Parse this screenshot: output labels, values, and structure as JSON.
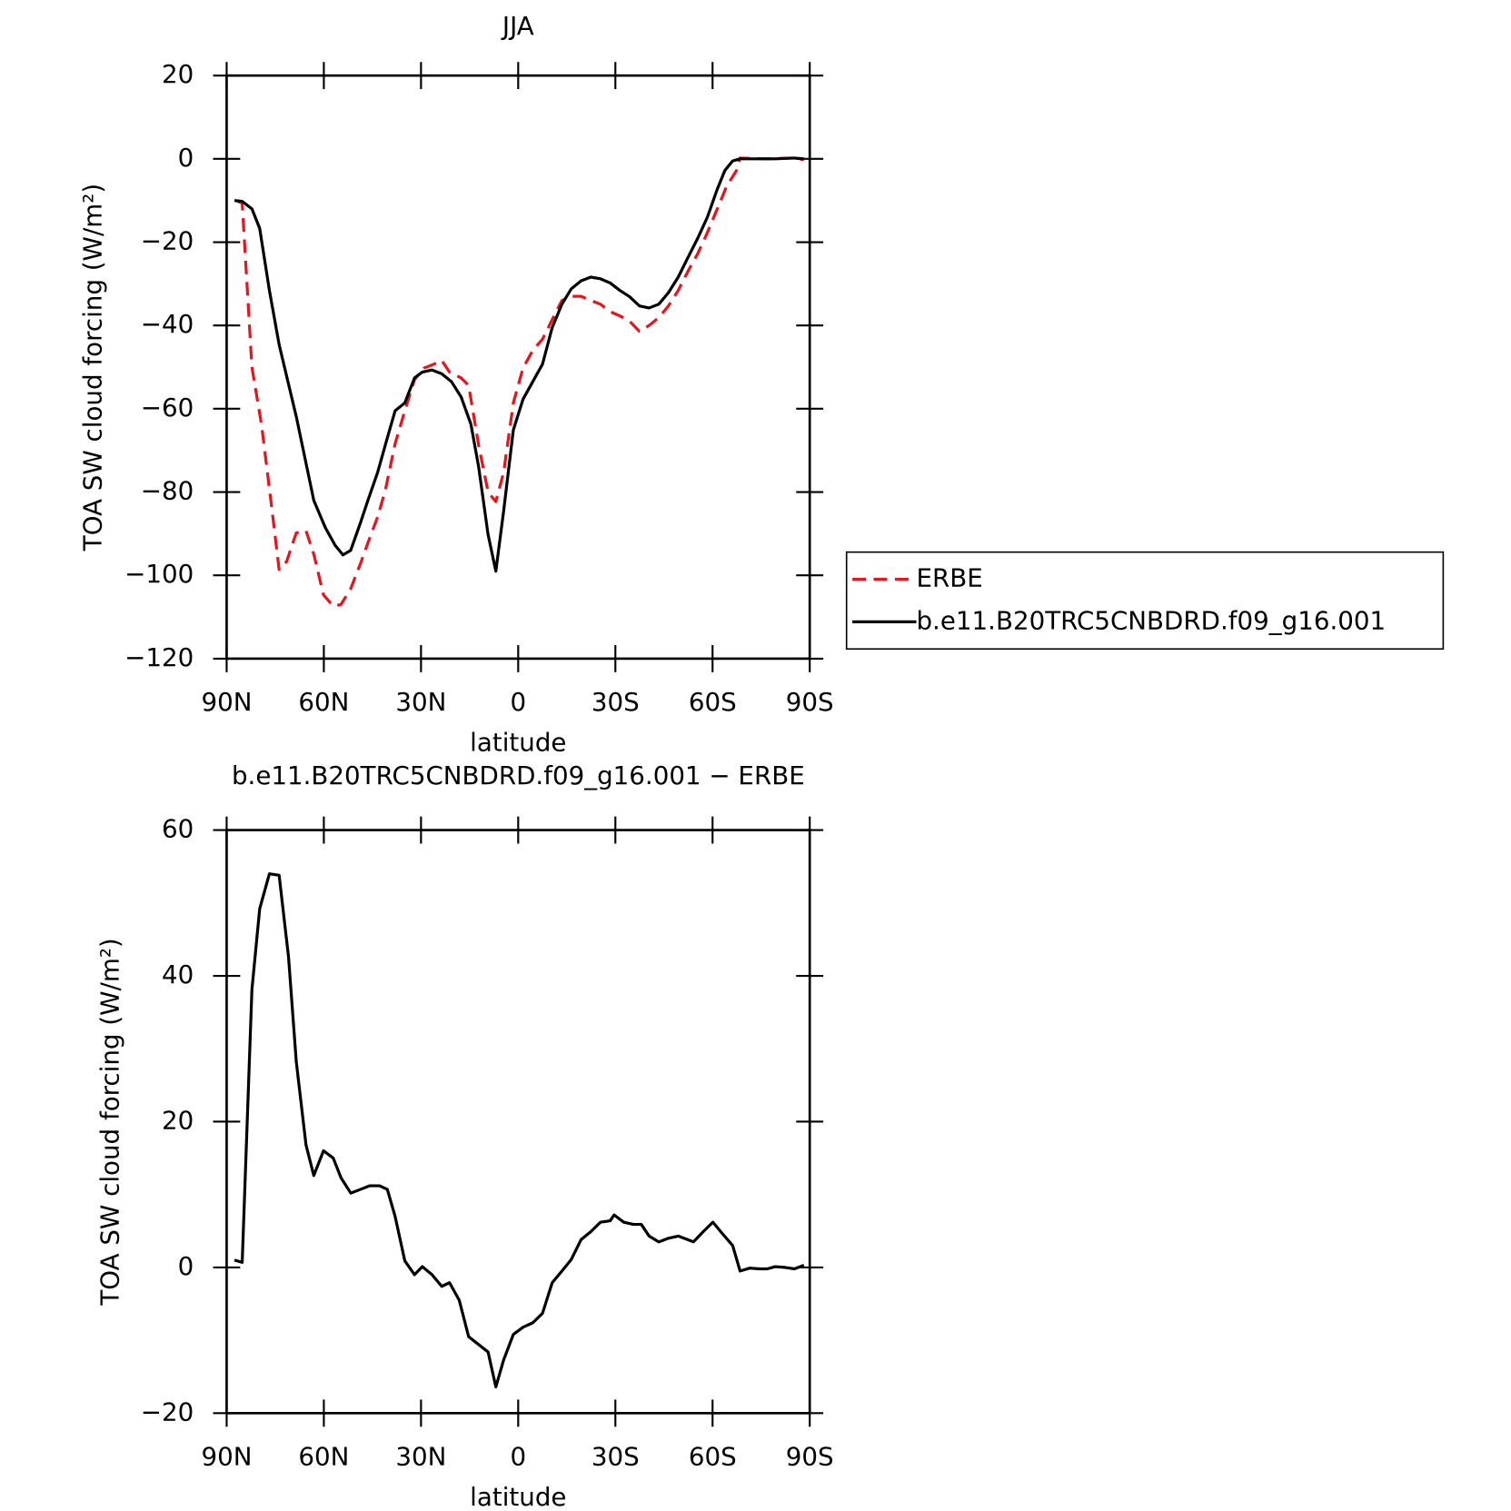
{
  "chart_data": [
    {
      "type": "line",
      "title": "JJA",
      "xlabel": "latitude",
      "ylabel": "TOA SW cloud forcing (W/m²)",
      "xlim": [
        90,
        -90
      ],
      "xticks": [
        {
          "value": 90,
          "label": "90N"
        },
        {
          "value": 60,
          "label": "60N"
        },
        {
          "value": 30,
          "label": "30N"
        },
        0,
        {
          "value": -30,
          "label": "30S"
        },
        {
          "value": -60,
          "label": "60S"
        },
        {
          "value": -90,
          "label": "90S"
        }
      ],
      "ylim": [
        -120,
        20
      ],
      "yticks": [
        {
          "value": -120,
          "label": "−120"
        },
        {
          "value": -100,
          "label": "−100"
        },
        {
          "value": -80,
          "label": "−80"
        },
        {
          "value": -60,
          "label": "−60"
        },
        {
          "value": -40,
          "label": "−40"
        },
        {
          "value": -20,
          "label": "−20"
        },
        0,
        20
      ],
      "legend": "right",
      "series": [
        {
          "name": "ERBE",
          "color": "#e8141c",
          "dashed": true,
          "x": [
            87,
            85.2,
            82.2,
            79.2,
            76.2,
            73.8,
            71.5,
            68.5,
            65.5,
            63.1,
            60.1,
            57.1,
            54.7,
            51.7,
            48.7,
            46.3,
            43.4,
            41,
            38,
            35,
            32,
            29,
            26,
            23.6,
            21.2,
            17.6,
            15.3,
            12.2,
            9.3,
            6.9,
            4.5,
            1.5,
            -1.5,
            -4.5,
            -7.5,
            -10.5,
            -13.5,
            -16.4,
            -19.4,
            -22.4,
            -25.4,
            -28.4,
            -31.4,
            -34.4,
            -37.4,
            -40.4,
            -43.4,
            -46.4,
            -49.4,
            -52.4,
            -55.4,
            -58.4,
            -61.4,
            -64.4,
            -67.4,
            -68.5,
            -76.3,
            -84.7,
            -88.2
          ],
          "values": [
            -10,
            -10.7,
            -50,
            -64,
            -83,
            -98.6,
            -96.7,
            -89.8,
            -89.3,
            -94.9,
            -104.7,
            -107.4,
            -107,
            -103.2,
            -97.2,
            -92,
            -86,
            -79.5,
            -68.4,
            -60.5,
            -53,
            -50.2,
            -49.3,
            -48.4,
            -51.2,
            -52.6,
            -54.4,
            -68.8,
            -80,
            -82.3,
            -75.3,
            -58.6,
            -50.2,
            -46,
            -43.3,
            -38.6,
            -34,
            -33,
            -33,
            -34,
            -34.9,
            -36.7,
            -37.7,
            -39,
            -41.4,
            -40,
            -38.1,
            -35.3,
            -31.6,
            -27,
            -22.8,
            -17.7,
            -12.1,
            -6.5,
            -2.8,
            0.2,
            0,
            0.2,
            -0.2
          ]
        },
        {
          "name": "b.e11.B20TRC5CNBDRD.f09_g16.001",
          "color": "#000000",
          "dashed": false,
          "x": [
            87.6,
            85.2,
            82.2,
            79.8,
            76.8,
            73.8,
            68.5,
            63.1,
            59.5,
            56.5,
            54.1,
            51.7,
            48.7,
            46.3,
            43.4,
            40.4,
            38,
            35,
            32,
            29.6,
            26.6,
            23.6,
            20.6,
            17.6,
            14.6,
            12.2,
            9.3,
            6.9,
            4.5,
            1.5,
            -1.5,
            -4.5,
            -7.5,
            -10.5,
            -13.5,
            -16.4,
            -19.4,
            -22.4,
            -25.4,
            -28.4,
            -31.4,
            -34.4,
            -37.4,
            -40.4,
            -43.4,
            -46.4,
            -49.4,
            -52.4,
            -55.4,
            -58.4,
            -61.4,
            -63.8,
            -66.2,
            -68.5,
            -73.3,
            -79.3,
            -85.3,
            -88.2
          ],
          "values": [
            -10,
            -10.2,
            -12,
            -16.7,
            -31.6,
            -44.6,
            -61.9,
            -82,
            -88.6,
            -92.8,
            -95.1,
            -94,
            -87.4,
            -81.8,
            -75.3,
            -67,
            -60.5,
            -58.6,
            -52.6,
            -51.2,
            -50.7,
            -51.6,
            -53.5,
            -57.2,
            -63.7,
            -74,
            -90.2,
            -99,
            -84.6,
            -65.1,
            -57.7,
            -53.5,
            -49.3,
            -40.5,
            -34.9,
            -31.2,
            -29.3,
            -28.4,
            -28.8,
            -29.8,
            -31.6,
            -33.1,
            -35.3,
            -35.8,
            -34.9,
            -32.1,
            -28.4,
            -23.7,
            -19.1,
            -14,
            -7.4,
            -2.8,
            -0.5,
            0,
            0,
            0,
            0.2,
            0
          ]
        }
      ]
    },
    {
      "type": "line",
      "title": "b.e11.B20TRC5CNBDRD.f09_g16.001 − ERBE",
      "xlabel": "latitude",
      "ylabel": "TOA SW cloud forcing (W/m²)",
      "xlim": [
        90,
        -90
      ],
      "xticks": [
        {
          "value": 90,
          "label": "90N"
        },
        {
          "value": 60,
          "label": "60N"
        },
        {
          "value": 30,
          "label": "30N"
        },
        0,
        {
          "value": -30,
          "label": "30S"
        },
        {
          "value": -60,
          "label": "60S"
        },
        {
          "value": -90,
          "label": "90S"
        }
      ],
      "ylim": [
        -20,
        60
      ],
      "yticks": [
        {
          "value": -20,
          "label": "−20"
        },
        0,
        20,
        40,
        60
      ],
      "series": [
        {
          "color": "#000000",
          "dashed": false,
          "x": [
            87.6,
            85.2,
            82.2,
            79.8,
            76.8,
            73.8,
            70.9,
            68.5,
            65.5,
            63.1,
            60.1,
            57.1,
            54.7,
            51.7,
            48.7,
            45.8,
            42.8,
            40.4,
            38,
            35,
            32,
            29.6,
            26.6,
            23.6,
            21.2,
            18.2,
            15.3,
            12.2,
            9.3,
            6.9,
            4.5,
            1.5,
            -1.5,
            -4.5,
            -7.5,
            -10.5,
            -13.5,
            -16.4,
            -19.4,
            -22.4,
            -25.4,
            -28.4,
            -29.6,
            -32.6,
            -35.6,
            -38,
            -40.4,
            -43.4,
            -46.4,
            -49.4,
            -54.1,
            -57.1,
            -60.1,
            -63.1,
            -66.2,
            -68.5,
            -71.5,
            -74.5,
            -76.9,
            -79.3,
            -82.3,
            -85.3,
            -88.2
          ],
          "values": [
            1,
            0.7,
            38.1,
            49.2,
            54,
            53.8,
            42.6,
            28.2,
            16.8,
            12.6,
            16,
            15,
            12.3,
            10.2,
            10.7,
            11.2,
            11.2,
            10.7,
            7,
            0.9,
            -1,
            0.1,
            -1,
            -2.6,
            -2.1,
            -4.5,
            -9.5,
            -10.6,
            -11.6,
            -16.4,
            -12.7,
            -9.2,
            -8.2,
            -7.6,
            -6.3,
            -2.1,
            -0.5,
            1.1,
            3.8,
            4.9,
            6.2,
            6.4,
            7.2,
            6.2,
            5.9,
            5.9,
            4.3,
            3.5,
            4,
            4.3,
            3.5,
            4.9,
            6.2,
            4.6,
            3,
            -0.5,
            -0.1,
            -0.2,
            -0.2,
            0.1,
            0,
            -0.2,
            0.3
          ]
        }
      ]
    }
  ]
}
